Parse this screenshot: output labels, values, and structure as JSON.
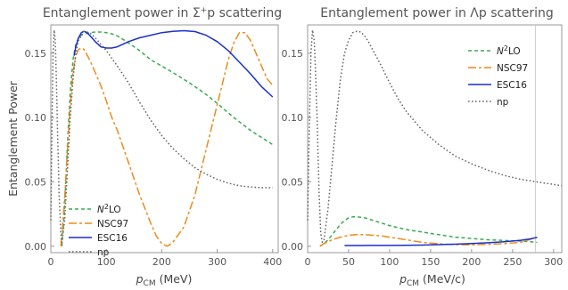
{
  "chart_data": [
    {
      "type": "line",
      "title_parts": [
        "Entanglement power in Σ",
        "+",
        "p scattering"
      ],
      "xlabel_parts": [
        "p",
        "CM",
        " (MeV)"
      ],
      "ylabel": "Entanglement Power",
      "xlim": [
        0,
        410
      ],
      "ylim": [
        -0.005,
        0.172
      ],
      "xticks": [
        0,
        100,
        200,
        300,
        400
      ],
      "yticks": [
        0.0,
        0.05,
        0.1,
        0.15
      ],
      "ytick_labels": [
        "0.00",
        "0.05",
        "0.10",
        "0.15"
      ],
      "legend_position": "bottom-left",
      "series": [
        {
          "name_parts": [
            "N",
            "2",
            "LO"
          ],
          "color": "#3aaa50",
          "dash": "4,3",
          "x": [
            20,
            25,
            30,
            35,
            40,
            45,
            50,
            55,
            60,
            70,
            80,
            90,
            100,
            110,
            120,
            140,
            160,
            180,
            200,
            220,
            250,
            280,
            300,
            330,
            360,
            400
          ],
          "y": [
            0.0,
            0.03,
            0.08,
            0.12,
            0.145,
            0.157,
            0.162,
            0.164,
            0.165,
            0.166,
            0.1665,
            0.1665,
            0.166,
            0.165,
            0.1635,
            0.158,
            0.152,
            0.145,
            0.14,
            0.135,
            0.127,
            0.118,
            0.111,
            0.1,
            0.09,
            0.079
          ]
        },
        {
          "name": "NSC97",
          "color": "#ee8a1a",
          "dash": "9,3,3,3",
          "x": [
            18,
            22,
            26,
            30,
            35,
            40,
            45,
            50,
            55,
            60,
            70,
            80,
            90,
            100,
            110,
            120,
            140,
            160,
            180,
            190,
            200,
            210,
            220,
            240,
            260,
            280,
            300,
            320,
            330,
            340,
            350,
            360,
            370,
            380,
            390,
            400
          ],
          "y": [
            0.0,
            0.02,
            0.045,
            0.075,
            0.11,
            0.135,
            0.148,
            0.153,
            0.154,
            0.153,
            0.145,
            0.135,
            0.125,
            0.113,
            0.1,
            0.09,
            0.065,
            0.04,
            0.018,
            0.008,
            0.002,
            0.0,
            0.003,
            0.015,
            0.04,
            0.075,
            0.11,
            0.145,
            0.158,
            0.166,
            0.166,
            0.16,
            0.15,
            0.14,
            0.13,
            0.125
          ]
        },
        {
          "name": "ESC16",
          "color": "#1a2fcc",
          "dash": "",
          "x": [
            42,
            45,
            50,
            55,
            60,
            65,
            70,
            80,
            90,
            100,
            110,
            120,
            130,
            140,
            160,
            180,
            200,
            220,
            240,
            260,
            280,
            300,
            320,
            340,
            360,
            380,
            400
          ],
          "y": [
            0.148,
            0.155,
            0.162,
            0.166,
            0.167,
            0.166,
            0.164,
            0.159,
            0.155,
            0.154,
            0.154,
            0.155,
            0.157,
            0.159,
            0.162,
            0.164,
            0.166,
            0.167,
            0.1675,
            0.1668,
            0.164,
            0.159,
            0.152,
            0.143,
            0.134,
            0.124,
            0.116
          ]
        },
        {
          "name": "np",
          "color": "#666666",
          "dash": "1.6,2.4",
          "x": [
            0,
            2,
            4,
            6,
            8,
            10,
            12,
            15,
            18,
            20,
            25,
            30,
            35,
            40,
            45,
            50,
            60,
            70,
            80,
            90,
            100,
            120,
            140,
            160,
            180,
            200,
            220,
            240,
            260,
            280,
            300,
            320,
            340,
            360,
            380,
            400
          ],
          "y": [
            0.02,
            0.09,
            0.15,
            0.168,
            0.16,
            0.13,
            0.09,
            0.04,
            0.01,
            0.003,
            0.02,
            0.06,
            0.1,
            0.13,
            0.15,
            0.16,
            0.167,
            0.166,
            0.162,
            0.157,
            0.152,
            0.14,
            0.127,
            0.112,
            0.098,
            0.086,
            0.076,
            0.068,
            0.061,
            0.056,
            0.052,
            0.049,
            0.047,
            0.046,
            0.0455,
            0.0455
          ]
        }
      ]
    },
    {
      "type": "line",
      "title": "Entanglement power in Λp scattering",
      "xlabel_parts": [
        "p",
        "CM",
        " (MeV/c)"
      ],
      "ylabel": "",
      "xlim": [
        0,
        310
      ],
      "ylim": [
        -0.005,
        0.172
      ],
      "xticks": [
        0,
        50,
        100,
        150,
        200,
        250,
        300
      ],
      "yticks": [
        0.0,
        0.05,
        0.1,
        0.15
      ],
      "ytick_labels": [
        "0.00",
        "0.05",
        "0.10",
        "0.15"
      ],
      "vertical_line_x": 278,
      "legend_position": "top-right",
      "series": [
        {
          "name_parts": [
            "N",
            "2",
            "LO"
          ],
          "color": "#3aaa50",
          "dash": "4,3",
          "x": [
            15,
            20,
            25,
            30,
            35,
            40,
            45,
            50,
            55,
            60,
            65,
            70,
            80,
            90,
            100,
            120,
            140,
            160,
            180,
            200,
            220,
            240,
            260,
            280
          ],
          "y": [
            0.0,
            0.002,
            0.005,
            0.009,
            0.013,
            0.017,
            0.02,
            0.022,
            0.0228,
            0.0228,
            0.0225,
            0.022,
            0.02,
            0.018,
            0.016,
            0.013,
            0.011,
            0.009,
            0.007,
            0.006,
            0.005,
            0.0045,
            0.004,
            0.003
          ]
        },
        {
          "name": "NSC97",
          "color": "#ee8a1a",
          "dash": "9,3,3,3",
          "x": [
            15,
            20,
            30,
            40,
            50,
            60,
            70,
            80,
            90,
            100,
            120,
            140,
            160,
            180,
            200,
            220,
            240,
            260,
            270,
            280
          ],
          "y": [
            0.0,
            0.002,
            0.005,
            0.007,
            0.0085,
            0.009,
            0.009,
            0.0085,
            0.008,
            0.007,
            0.005,
            0.003,
            0.0018,
            0.0012,
            0.001,
            0.0015,
            0.002,
            0.003,
            0.005,
            0.007
          ]
        },
        {
          "name": "ESC16",
          "color": "#1a2fcc",
          "dash": "",
          "x": [
            45,
            60,
            80,
            100,
            120,
            140,
            160,
            180,
            200,
            220,
            240,
            260,
            270,
            280
          ],
          "y": [
            0.0005,
            0.0005,
            0.0006,
            0.0006,
            0.0007,
            0.0009,
            0.0012,
            0.0016,
            0.0021,
            0.0027,
            0.0035,
            0.0046,
            0.0055,
            0.0068
          ]
        },
        {
          "name": "np",
          "color": "#666666",
          "dash": "1.6,2.4",
          "x": [
            0,
            2,
            4,
            6,
            8,
            10,
            12,
            14,
            16,
            18,
            20,
            25,
            30,
            35,
            40,
            45,
            50,
            55,
            60,
            65,
            70,
            75,
            80,
            90,
            100,
            110,
            120,
            140,
            160,
            180,
            200,
            220,
            240,
            260,
            280,
            300,
            310
          ],
          "y": [
            0.02,
            0.09,
            0.15,
            0.168,
            0.16,
            0.13,
            0.09,
            0.04,
            0.01,
            0.003,
            0.005,
            0.03,
            0.065,
            0.1,
            0.13,
            0.15,
            0.16,
            0.166,
            0.167,
            0.1665,
            0.163,
            0.158,
            0.152,
            0.14,
            0.127,
            0.115,
            0.105,
            0.09,
            0.079,
            0.07,
            0.064,
            0.059,
            0.055,
            0.052,
            0.05,
            0.048,
            0.047
          ]
        }
      ]
    }
  ]
}
